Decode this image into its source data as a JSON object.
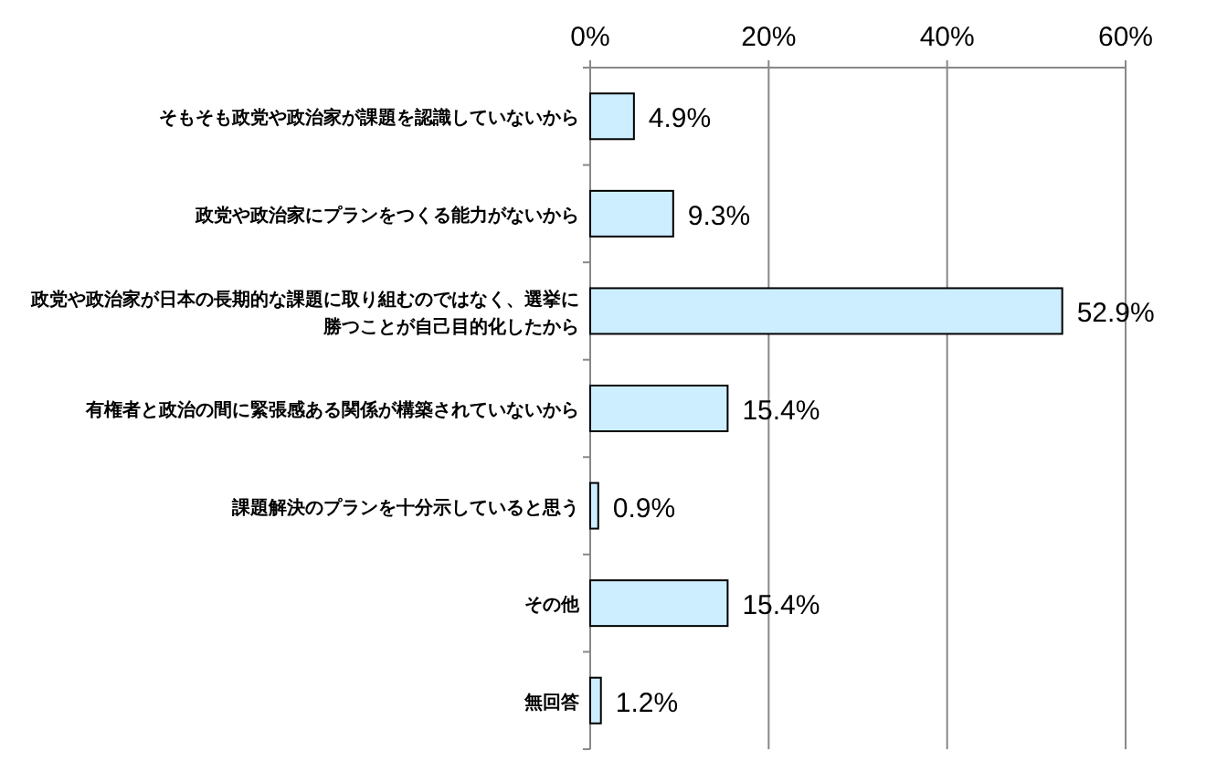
{
  "chart_data": {
    "type": "bar",
    "orientation": "horizontal",
    "categories": [
      "そもそも政党や政治家が課題を認識していないから",
      "政党や政治家にプランをつくる能力がないから",
      "政党や政治家が日本の長期的な課題に取り組むのではなく、選挙に勝つことが自己目的化したから",
      "有権者と政治の間に緊張感ある関係が構築されていないから",
      "課題解決のプランを十分示していると思う",
      "その他",
      "無回答"
    ],
    "values": [
      4.9,
      9.3,
      52.9,
      15.4,
      0.9,
      15.4,
      1.2
    ],
    "value_labels": [
      "4.9%",
      "9.3%",
      "52.9%",
      "15.4%",
      "0.9%",
      "15.4%",
      "1.2%"
    ],
    "color": "#cceeff",
    "xlim": [
      0,
      60
    ],
    "xticks": [
      {
        "value": 0,
        "label": "0%"
      },
      {
        "value": 20,
        "label": "20%"
      },
      {
        "value": 40,
        "label": "40%"
      },
      {
        "value": 60,
        "label": "60%"
      }
    ],
    "grid": "x"
  }
}
